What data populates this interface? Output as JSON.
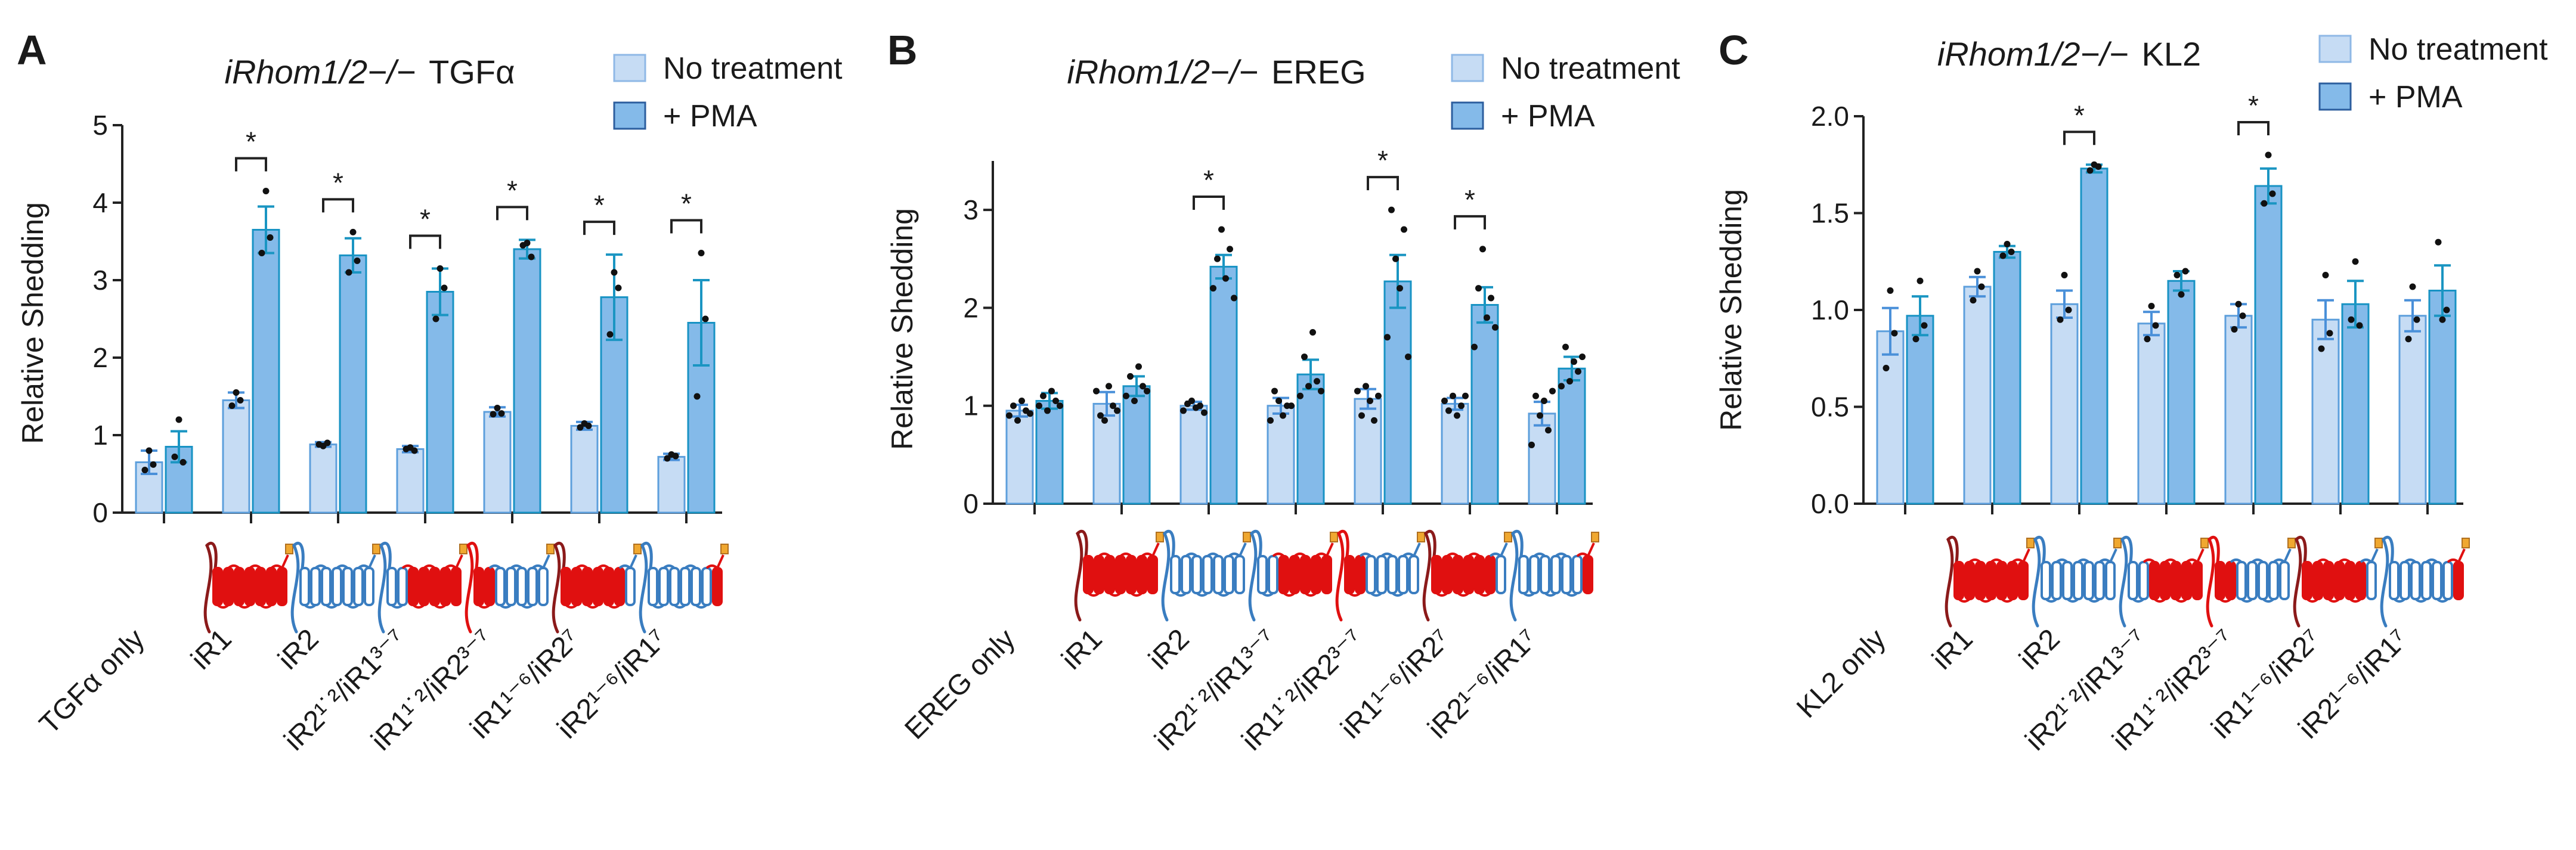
{
  "figure": {
    "panel_letters": [
      "A",
      "B",
      "C"
    ],
    "legend_labels": [
      "No treatment",
      "+ PMA"
    ],
    "sig_marker": "*",
    "colors": {
      "no_fill": "#c6dcf4",
      "no_stroke": "#5d9fdc",
      "pma_fill": "#84bae9",
      "pma_stroke": "#1893c4",
      "err_no": "#4a90d9",
      "err_pma": "#1a95c2",
      "axis": "#222222",
      "dot": "#111111",
      "red": "#e01010",
      "blue": "#3a7dc0",
      "dark_red": "#8b1a1a",
      "tag": "#f0a830"
    }
  },
  "chart_data": [
    {
      "type": "bar",
      "panel": "A",
      "title_italic": "iRhom1/2−/−",
      "title_ligand": "TGFα",
      "xlabel": "",
      "ylabel": "Relative Shedding",
      "ylim": [
        0,
        5
      ],
      "yticks": [
        0,
        1,
        2,
        3,
        4,
        5
      ],
      "categories": [
        "TGFα only",
        "iR1",
        "iR2",
        "iR2¹˙²/iR1³⁻⁷",
        "iR1¹˙²/iR2³⁻⁷",
        "iR1¹⁻⁶/iR2⁷",
        "iR2¹⁻⁶/iR1⁷"
      ],
      "protein_diagrams": [
        "none",
        "iR1",
        "iR2",
        "iR2N-iR1C",
        "iR1N-iR2C",
        "iR1-iR2tail",
        "iR2-iR1tail"
      ],
      "series": [
        {
          "name": "No treatment",
          "values": [
            0.65,
            1.45,
            0.88,
            0.82,
            1.3,
            1.12,
            0.72
          ],
          "sem": [
            0.15,
            0.1,
            0.03,
            0.04,
            0.06,
            0.05,
            0.04
          ]
        },
        {
          "name": "+ PMA",
          "values": [
            0.85,
            3.65,
            3.32,
            2.85,
            3.4,
            2.78,
            2.45
          ],
          "sem": [
            0.2,
            0.3,
            0.22,
            0.3,
            0.12,
            0.55,
            0.55
          ]
        }
      ],
      "points": [
        [
          [
            0.55,
            0.8,
            0.62
          ],
          [
            0.72,
            1.2,
            0.65
          ]
        ],
        [
          [
            1.38,
            1.55,
            1.45
          ],
          [
            3.35,
            4.15,
            3.55
          ]
        ],
        [
          [
            0.88,
            0.86,
            0.9
          ],
          [
            3.1,
            3.62,
            3.25
          ]
        ],
        [
          [
            0.82,
            0.84,
            0.8
          ],
          [
            2.5,
            3.15,
            2.9
          ]
        ],
        [
          [
            1.27,
            1.35,
            1.28
          ],
          [
            3.45,
            3.48,
            3.3
          ]
        ],
        [
          [
            1.1,
            1.15,
            1.12
          ],
          [
            2.3,
            3.1,
            2.9
          ]
        ],
        [
          [
            0.7,
            0.75,
            0.73
          ],
          [
            1.5,
            3.35,
            2.5
          ]
        ]
      ],
      "significance": [
        false,
        true,
        true,
        true,
        true,
        true,
        true
      ]
    },
    {
      "type": "bar",
      "panel": "B",
      "title_italic": "iRhom1/2−/−",
      "title_ligand": "EREG",
      "xlabel": "",
      "ylabel": "Relative Shedding",
      "ylim": [
        0,
        3.5
      ],
      "yticks": [
        0,
        1,
        2,
        3
      ],
      "categories": [
        "EREG only",
        "iR1",
        "iR2",
        "iR2¹˙²/iR1³⁻⁷",
        "iR1¹˙²/iR2³⁻⁷",
        "iR1¹⁻⁶/iR2⁷",
        "iR2¹⁻⁶/iR1⁷"
      ],
      "protein_diagrams": [
        "none",
        "iR1",
        "iR2",
        "iR2N-iR1C",
        "iR1N-iR2C",
        "iR1-iR2tail",
        "iR2-iR1tail"
      ],
      "series": [
        {
          "name": "No treatment",
          "values": [
            0.95,
            1.02,
            1.0,
            1.0,
            1.07,
            1.02,
            0.92
          ],
          "sem": [
            0.06,
            0.12,
            0.04,
            0.08,
            0.1,
            0.06,
            0.12
          ]
        },
        {
          "name": "+ PMA",
          "values": [
            1.05,
            1.2,
            2.42,
            1.32,
            2.27,
            2.03,
            1.38
          ],
          "sem": [
            0.08,
            0.1,
            0.12,
            0.15,
            0.27,
            0.18,
            0.12
          ]
        }
      ],
      "points": [
        [
          [
            0.9,
            1.0,
            0.85,
            1.05,
            0.95,
            0.92
          ],
          [
            1.0,
            1.1,
            0.95,
            1.15,
            1.05,
            1.0
          ]
        ],
        [
          [
            1.15,
            0.9,
            0.85,
            1.2,
            1.0,
            0.95
          ],
          [
            1.1,
            1.3,
            1.05,
            1.4,
            1.2,
            1.15
          ]
        ],
        [
          [
            0.95,
            1.02,
            1.05,
            0.98,
            1.0,
            0.93
          ],
          [
            2.2,
            2.5,
            2.8,
            2.3,
            2.6,
            2.1
          ]
        ],
        [
          [
            0.85,
            1.15,
            1.05,
            0.9,
            1.0,
            1.0
          ],
          [
            1.1,
            1.5,
            1.2,
            1.75,
            1.25,
            1.15
          ]
        ],
        [
          [
            1.15,
            0.9,
            1.2,
            1.05,
            0.85,
            1.1
          ],
          [
            1.7,
            3.0,
            2.5,
            2.2,
            2.8,
            1.5
          ]
        ],
        [
          [
            1.05,
            0.95,
            1.1,
            0.9,
            1.0,
            1.1
          ],
          [
            1.6,
            2.2,
            2.6,
            1.9,
            2.1,
            1.8
          ]
        ],
        [
          [
            0.6,
            1.1,
            0.9,
            1.05,
            0.75,
            1.15
          ],
          [
            1.2,
            1.6,
            1.25,
            1.45,
            1.35,
            1.5
          ]
        ]
      ],
      "significance": [
        false,
        false,
        true,
        false,
        true,
        true,
        false
      ]
    },
    {
      "type": "bar",
      "panel": "C",
      "title_italic": "iRhom1/2−/−",
      "title_ligand": "KL2",
      "xlabel": "",
      "ylabel": "Relative Shedding",
      "ylim": [
        0,
        2.0
      ],
      "yticks": [
        "0.0",
        "0.5",
        "1.0",
        "1.5",
        "2.0"
      ],
      "categories": [
        "KL2 only",
        "iR1",
        "iR2",
        "iR2¹˙²/iR1³⁻⁷",
        "iR1¹˙²/iR2³⁻⁷",
        "iR1¹⁻⁶/iR2⁷",
        "iR2¹⁻⁶/iR1⁷"
      ],
      "protein_diagrams": [
        "none",
        "iR1",
        "iR2",
        "iR2N-iR1C",
        "iR1N-iR2C",
        "iR1-iR2tail",
        "iR2-iR1tail"
      ],
      "series": [
        {
          "name": "No treatment",
          "values": [
            0.89,
            1.12,
            1.03,
            0.93,
            0.97,
            0.95,
            0.97
          ],
          "sem": [
            0.12,
            0.05,
            0.07,
            0.06,
            0.06,
            0.1,
            0.08
          ]
        },
        {
          "name": "+ PMA",
          "values": [
            0.97,
            1.3,
            1.73,
            1.15,
            1.64,
            1.03,
            1.1
          ],
          "sem": [
            0.1,
            0.03,
            0.02,
            0.05,
            0.09,
            0.12,
            0.13
          ]
        }
      ],
      "points": [
        [
          [
            0.7,
            1.1,
            0.88
          ],
          [
            0.85,
            1.15,
            0.92
          ]
        ],
        [
          [
            1.05,
            1.2,
            1.12
          ],
          [
            1.28,
            1.34,
            1.3
          ]
        ],
        [
          [
            0.95,
            1.18,
            1.0
          ],
          [
            1.72,
            1.75,
            1.74
          ]
        ],
        [
          [
            0.85,
            1.02,
            0.92
          ],
          [
            1.18,
            1.08,
            1.2
          ]
        ],
        [
          [
            0.9,
            1.03,
            0.97
          ],
          [
            1.55,
            1.8,
            1.6
          ]
        ],
        [
          [
            0.8,
            1.18,
            0.88
          ],
          [
            0.95,
            1.25,
            0.92
          ]
        ],
        [
          [
            0.85,
            1.12,
            0.95
          ],
          [
            1.35,
            0.95,
            1.0
          ]
        ]
      ],
      "significance": [
        false,
        false,
        true,
        false,
        true,
        false,
        false
      ]
    }
  ]
}
